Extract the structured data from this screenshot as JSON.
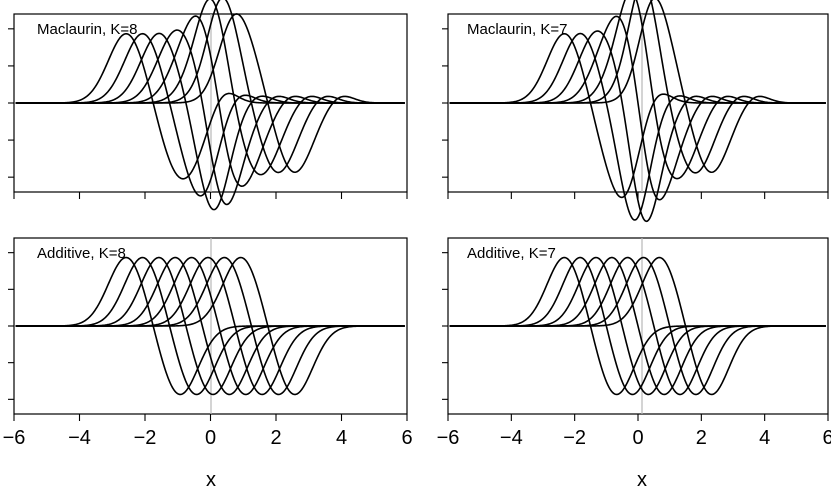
{
  "figure": {
    "xlabel": "x"
  },
  "chart_data": [
    {
      "type": "line",
      "title": "Maclaurin, K=8",
      "method": "Maclaurin",
      "K": 8,
      "xlim": [
        -6,
        6
      ],
      "ylim": [
        -1.2,
        1.2
      ],
      "x_ticks": [
        -6,
        -4,
        -2,
        0,
        2,
        4,
        6
      ],
      "y_ticks": [
        -1,
        -0.5,
        0,
        0.5,
        1
      ],
      "xlabel": "",
      "ylabel": "",
      "vline_x": 0,
      "series_count": 8,
      "shifts": [
        -1.75,
        -1.25,
        -0.75,
        -0.25,
        0.25,
        0.75,
        1.25,
        1.75
      ],
      "shape": {
        "a": 0.8,
        "w": 0.8,
        "b": 0.12,
        "c": 0.55
      },
      "distortion": 0.55,
      "sharpness": 1.5,
      "distortion_center_x": 0.2,
      "dx": 0.03
    },
    {
      "type": "line",
      "title": "Maclaurin, K=7",
      "method": "Maclaurin",
      "K": 7,
      "xlim": [
        -6,
        6
      ],
      "ylim": [
        -1.2,
        1.2
      ],
      "x_ticks": [
        -6,
        -4,
        -2,
        0,
        2,
        4,
        6
      ],
      "y_ticks": [
        -1,
        -0.5,
        0,
        0.5,
        1
      ],
      "xlabel": "x",
      "ylabel": "",
      "vline_x": 0,
      "series_count": 7,
      "shifts": [
        -1.5,
        -1.0,
        -0.5,
        0.0,
        0.5,
        1.0,
        1.5
      ],
      "shape": {
        "a": 0.8,
        "w": 0.8,
        "b": 0.12,
        "c": 0.55
      },
      "distortion": 0.75,
      "sharpness": 1.5,
      "distortion_center_x": 0.1,
      "dx": 0.03
    },
    {
      "type": "line",
      "title": "Additive, K=8",
      "method": "Additive",
      "K": 8,
      "xlim": [
        -6,
        6
      ],
      "ylim": [
        -1.2,
        1.2
      ],
      "x_ticks": [
        -6,
        -4,
        -2,
        0,
        2,
        4,
        6
      ],
      "y_ticks": [
        -1,
        -0.5,
        0,
        0.5,
        1
      ],
      "xlabel": "x",
      "ylabel": "",
      "vline_x": 0,
      "series_count": 8,
      "shifts": [
        -1.75,
        -1.25,
        -0.75,
        -0.25,
        0.25,
        0.75,
        1.25,
        1.75
      ],
      "shape": {
        "a": 0.8,
        "w": 0.8,
        "b": 0.0,
        "c": 0.55
      },
      "distortion": 0.0,
      "sharpness": 1.5,
      "distortion_center_x": 0.0,
      "dx": 0.03
    },
    {
      "type": "line",
      "title": "Additive, K=7",
      "method": "Additive",
      "K": 7,
      "xlim": [
        -6,
        6
      ],
      "ylim": [
        -1.2,
        1.2
      ],
      "x_ticks": [
        -6,
        -4,
        -2,
        0,
        2,
        4,
        6
      ],
      "y_ticks": [
        -1,
        -0.5,
        0,
        0.5,
        1
      ],
      "xlabel": "x",
      "ylabel": "",
      "vline_x": 0,
      "series_count": 7,
      "shifts": [
        -1.5,
        -1.0,
        -0.5,
        0.0,
        0.5,
        1.0,
        1.5
      ],
      "shape": {
        "a": 0.8,
        "w": 0.8,
        "b": 0.0,
        "c": 0.55
      },
      "distortion": 0.0,
      "sharpness": 1.5,
      "distortion_center_x": 0.0,
      "dx": 0.03
    }
  ]
}
